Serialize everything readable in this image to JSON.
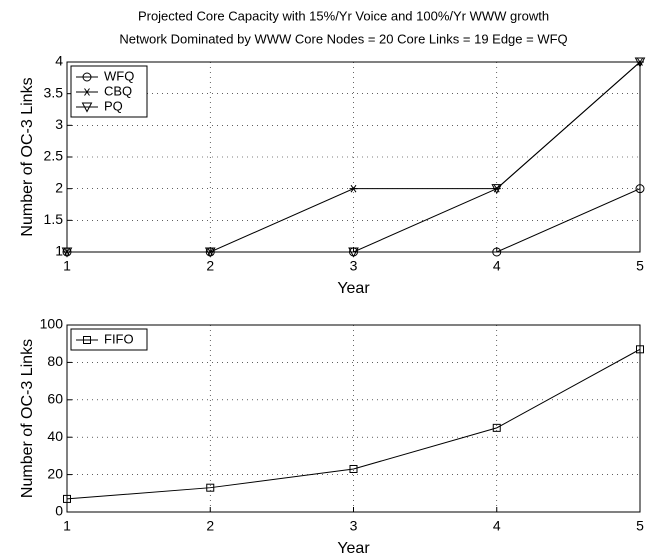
{
  "chart_data": [
    {
      "type": "line",
      "title": "Projected Core Capacity with 15%/Yr Voice and 100%/Yr WWW growth",
      "subtitle": "Network Dominated by WWW Core Nodes = 20 Core Links = 19 Edge = WFQ",
      "xlabel": "Year",
      "ylabel": "Number of OC-3 Links",
      "x": [
        1,
        2,
        3,
        4,
        5
      ],
      "xlim": [
        1,
        5
      ],
      "xticks": [
        1,
        2,
        3,
        4,
        5
      ],
      "ylim": [
        1,
        4
      ],
      "yticks": [
        1,
        1.5,
        2,
        2.5,
        3,
        3.5,
        4
      ],
      "grid": true,
      "legend": "upper left",
      "series": [
        {
          "name": "WFQ",
          "color": "#000000",
          "marker": "circle",
          "values": [
            1,
            1,
            1,
            1,
            2
          ]
        },
        {
          "name": "CBQ",
          "color": "#000000",
          "marker": "asterisk",
          "values": [
            1,
            1,
            2,
            2,
            4
          ]
        },
        {
          "name": "PQ",
          "color": "#000000",
          "marker": "triangle-down",
          "values": [
            1,
            1,
            1,
            2,
            4
          ]
        }
      ]
    },
    {
      "type": "line",
      "xlabel": "Year",
      "ylabel": "Number of OC-3 Links",
      "x": [
        1,
        2,
        3,
        4,
        5
      ],
      "xlim": [
        1,
        5
      ],
      "xticks": [
        1,
        2,
        3,
        4,
        5
      ],
      "ylim": [
        0,
        100
      ],
      "yticks": [
        0,
        20,
        40,
        60,
        80,
        100
      ],
      "grid": true,
      "legend": "upper left",
      "series": [
        {
          "name": "FIFO",
          "color": "#000000",
          "marker": "square",
          "values": [
            7,
            13,
            23,
            45,
            87
          ]
        }
      ]
    }
  ]
}
